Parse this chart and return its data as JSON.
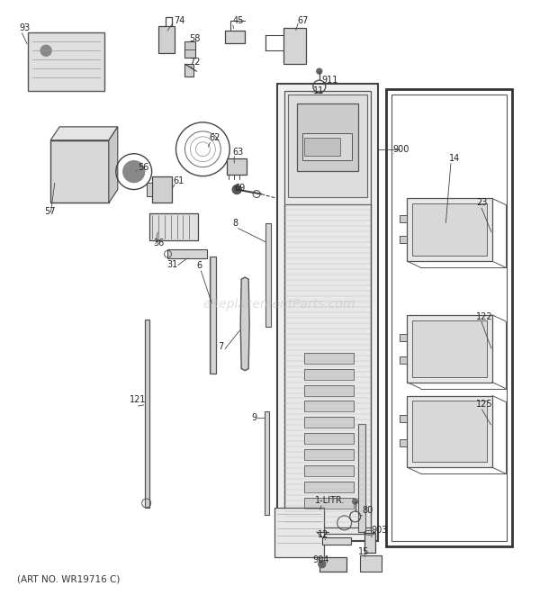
{
  "bg_color": "#ffffff",
  "watermark": "eReplacementParts.com",
  "watermark_color": "#bbbbbb",
  "watermark_alpha": 0.45,
  "art_no": "(ART NO. WR19716 C)",
  "fig_width": 6.2,
  "fig_height": 6.61,
  "dpi": 100,
  "line_color": "#444444",
  "label_fontsize": 7.0
}
